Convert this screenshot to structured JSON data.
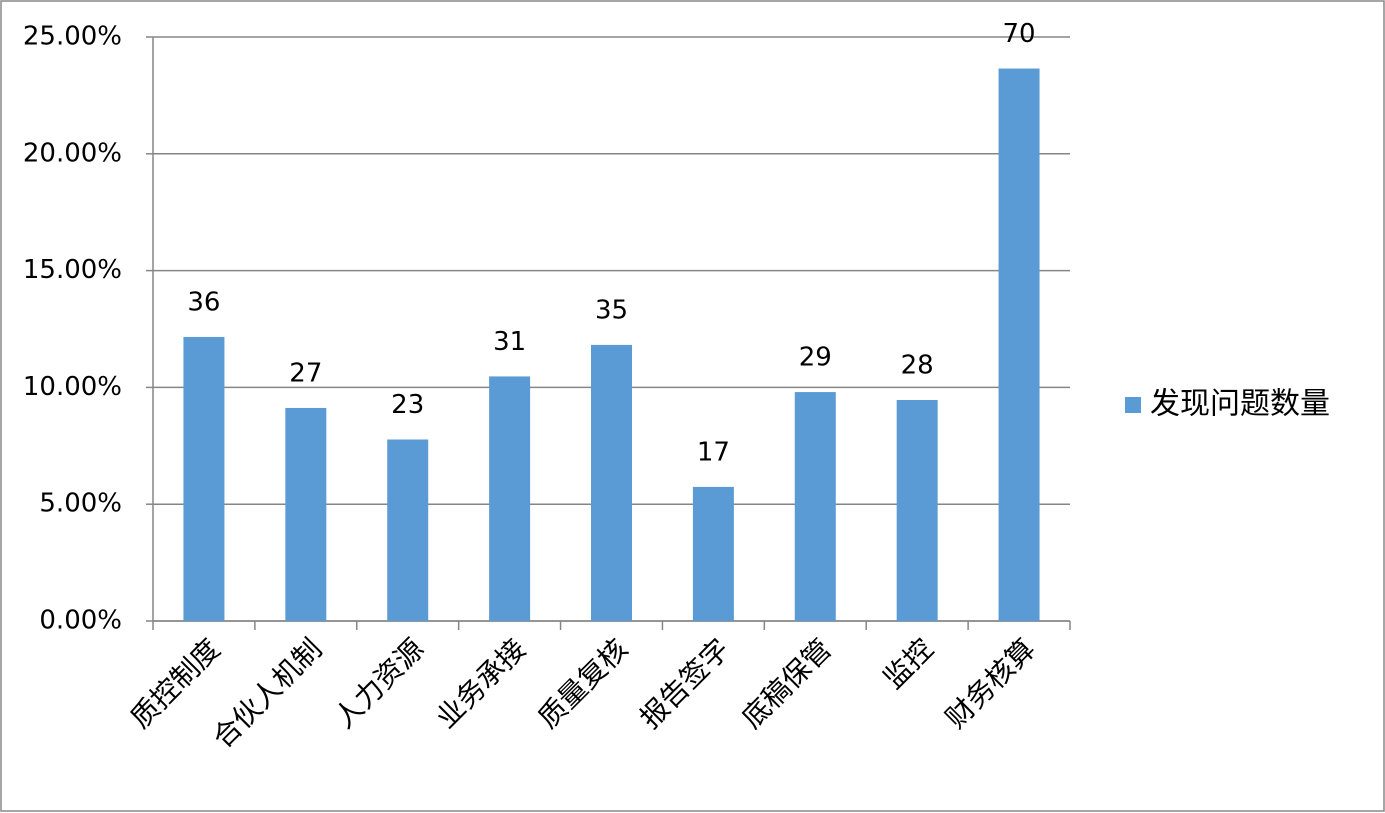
{
  "chart_data": {
    "type": "bar",
    "categories": [
      "质控制度",
      "合伙人机制",
      "人力资源",
      "业务承接",
      "质量复核",
      "报告签字",
      "底稿保管",
      "监控",
      "财务核算"
    ],
    "series": [
      {
        "name": "发现问题数量",
        "color": "#5b9bd5",
        "values": [
          12.16,
          9.12,
          7.77,
          10.47,
          11.82,
          5.74,
          9.8,
          9.46,
          23.65
        ],
        "value_labels": [
          "36",
          "27",
          "23",
          "31",
          "35",
          "17",
          "29",
          "28",
          "70"
        ]
      }
    ],
    "ylim": [
      0,
      25
    ],
    "yticks": [
      {
        "value": 0,
        "label": "0.00%"
      },
      {
        "value": 5,
        "label": "5.00%"
      },
      {
        "value": 10,
        "label": "10.00%"
      },
      {
        "value": 15,
        "label": "15.00%"
      },
      {
        "value": 20,
        "label": "20.00%"
      },
      {
        "value": 25,
        "label": "25.00%"
      }
    ],
    "grid": true,
    "legend": "right"
  }
}
